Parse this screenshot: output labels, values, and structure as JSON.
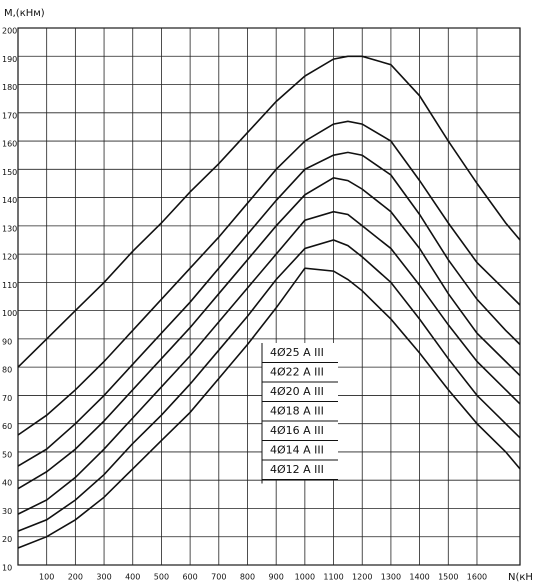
{
  "chart_data": {
    "type": "line",
    "y_label": "M,(кНм)",
    "x_label": "N(кН)",
    "x": [
      0,
      100,
      200,
      300,
      400,
      500,
      600,
      700,
      800,
      900,
      1000,
      1100,
      1150,
      1200,
      1300,
      1400,
      1500,
      1600,
      1700,
      1750
    ],
    "xlim": [
      0,
      1750
    ],
    "ylim": [
      10,
      200
    ],
    "xticks": [
      100,
      200,
      300,
      400,
      500,
      600,
      700,
      800,
      900,
      1000,
      1100,
      1200,
      1300,
      1400,
      1500,
      1600
    ],
    "yticks": [
      10,
      20,
      30,
      40,
      50,
      60,
      70,
      80,
      90,
      100,
      110,
      120,
      130,
      140,
      150,
      160,
      170,
      180,
      190,
      200
    ],
    "grid": true,
    "series": [
      {
        "name": "4Ø25 A III",
        "color": "#111111",
        "values": [
          80,
          90,
          100,
          110,
          121,
          131,
          142,
          152,
          163,
          174,
          183,
          189,
          190,
          190,
          187,
          176,
          160,
          145,
          131,
          125
        ]
      },
      {
        "name": "4Ø22 A III",
        "color": "#111111",
        "values": [
          56,
          63,
          72,
          82,
          93,
          104,
          115,
          126,
          138,
          150,
          160,
          166,
          167,
          166,
          160,
          146,
          131,
          117,
          107,
          102
        ]
      },
      {
        "name": "4Ø20 A III",
        "color": "#111111",
        "values": [
          45,
          51,
          60,
          70,
          81,
          92,
          103,
          115,
          127,
          139,
          150,
          155,
          156,
          155,
          148,
          134,
          118,
          104,
          93,
          88
        ]
      },
      {
        "name": "4Ø18 A III",
        "color": "#111111",
        "values": [
          37,
          43,
          51,
          61,
          72,
          83,
          94,
          106,
          118,
          130,
          141,
          147,
          146,
          143,
          135,
          122,
          106,
          92,
          82,
          77
        ]
      },
      {
        "name": "4Ø16 A III",
        "color": "#111111",
        "values": [
          28,
          33,
          41,
          51,
          62,
          73,
          84,
          96,
          108,
          120,
          132,
          135,
          134,
          130,
          122,
          109,
          95,
          82,
          72,
          67
        ]
      },
      {
        "name": "4Ø14 A III",
        "color": "#111111",
        "values": [
          22,
          26,
          33,
          42,
          53,
          63,
          74,
          86,
          98,
          111,
          122,
          125,
          123,
          119,
          110,
          97,
          83,
          70,
          60,
          55
        ]
      },
      {
        "name": "4Ø12 A III",
        "color": "#111111",
        "values": [
          16,
          20,
          26,
          34,
          44,
          54,
          64,
          76,
          88,
          101,
          115,
          114,
          111,
          107,
          97,
          85,
          72,
          60,
          50,
          44
        ]
      }
    ]
  }
}
